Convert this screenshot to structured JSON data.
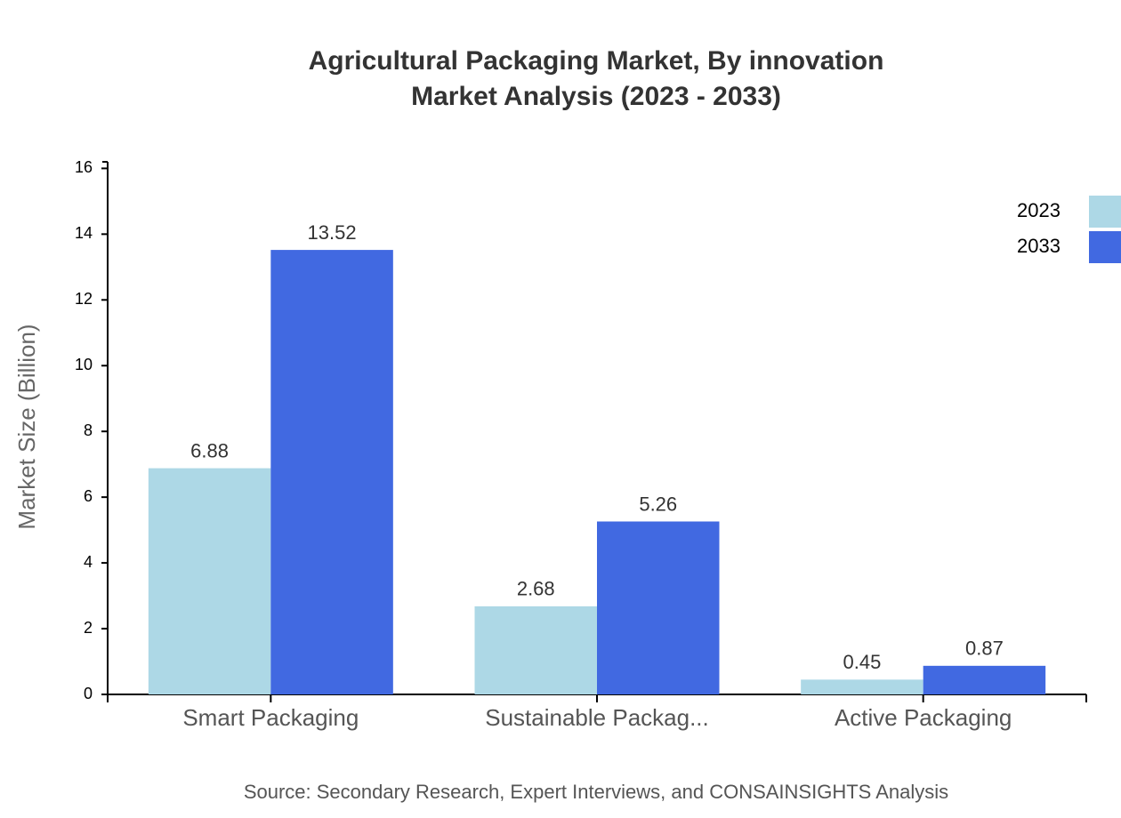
{
  "chart_data": {
    "type": "bar",
    "title": "Agricultural Packaging Market, By innovation",
    "subtitle": "Market Analysis (2023 - 2033)",
    "y_label": "Market Size (Billion)",
    "source": "Source: Secondary Research, Expert Interviews, and CONSAINSIGHTS Analysis",
    "categories": [
      "Smart Packaging",
      "Sustainable Packag...",
      "Active Packaging"
    ],
    "series": [
      {
        "name": "2023",
        "color": "#add8e6",
        "values": [
          6.88,
          2.68,
          0.45
        ]
      },
      {
        "name": "2033",
        "color": "#4169e1",
        "values": [
          13.52,
          5.26,
          0.87
        ]
      }
    ],
    "ylim": [
      0,
      16.2
    ],
    "yticks": [
      0,
      2,
      4,
      6,
      8,
      10,
      12,
      14,
      16
    ],
    "legend": "top-right"
  }
}
